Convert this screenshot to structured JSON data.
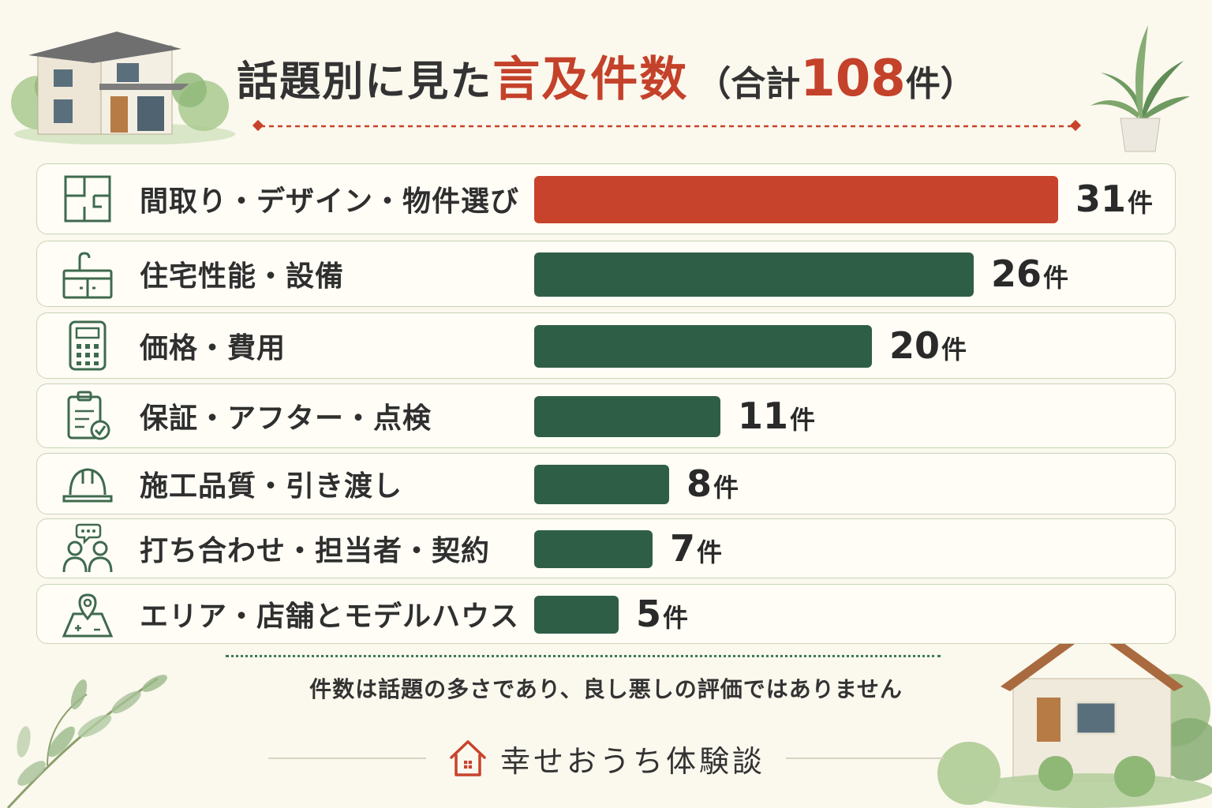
{
  "title": {
    "part1": "話題別に見た",
    "part2": "言及件数",
    "part3": "（合計",
    "total": "108",
    "part5": "件）"
  },
  "chart_data": {
    "type": "bar",
    "orientation": "horizontal",
    "total": 108,
    "max": 31,
    "categories": [
      "間取り・デザイン・物件選び",
      "住宅性能・設備",
      "価格・費用",
      "保証・アフター・点検",
      "施工品質・引き渡し",
      "打ち合わせ・担当者・契約",
      "エリア・店舗とモデルハウス"
    ],
    "values": [
      31,
      26,
      20,
      11,
      8,
      7,
      5
    ],
    "unit": "件",
    "highlight_color": "#c7432b",
    "bar_color": "#2f5e47",
    "icons": [
      "floorplan-icon",
      "kitchen-sink-icon",
      "calculator-icon",
      "clipboard-check-icon",
      "hard-hat-icon",
      "people-chat-icon",
      "map-pin-icon"
    ]
  },
  "footnote": "件数は話題の多さであり、良し悪しの評価ではありません",
  "brand": {
    "name": "幸せおうち体験談",
    "icon": "house-logo-icon"
  }
}
